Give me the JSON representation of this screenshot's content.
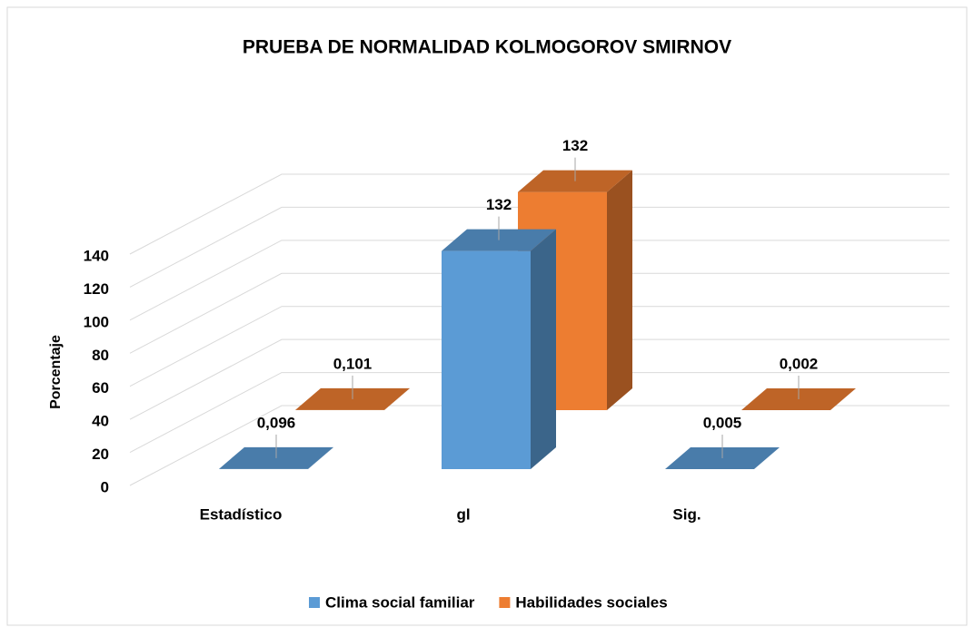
{
  "chart_data": {
    "type": "bar3d",
    "title": "PRUEBA DE NORMALIDAD KOLMOGOROV SMIRNOV",
    "y_label": "Porcentaje",
    "categories": [
      "Estadístico",
      "gl",
      "Sig."
    ],
    "series": [
      {
        "name": "Clima social familiar",
        "color": "#5b9bd5",
        "values": [
          0.096,
          132,
          0.005
        ],
        "value_labels": [
          "0,096",
          "132",
          "0,005"
        ]
      },
      {
        "name": "Habilidades sociales",
        "color": "#ed7d31",
        "values": [
          0.101,
          132,
          0.002
        ],
        "value_labels": [
          "0,101",
          "132",
          "0,002"
        ]
      }
    ],
    "ylim": [
      0,
      140
    ],
    "yticks": [
      0,
      20,
      40,
      60,
      80,
      100,
      120,
      140
    ],
    "grid": true,
    "legend": "bottom"
  }
}
